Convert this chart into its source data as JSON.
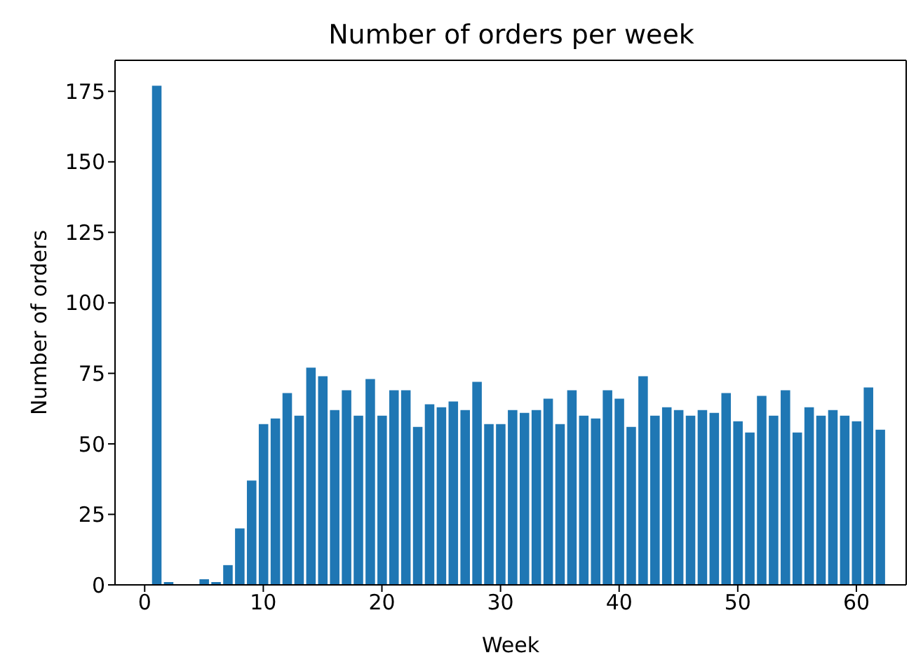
{
  "chart_data": {
    "type": "bar",
    "title": "Number of orders per week",
    "xlabel": "Week",
    "ylabel": "Number of orders",
    "x": [
      1,
      2,
      3,
      4,
      5,
      6,
      7,
      8,
      9,
      10,
      11,
      12,
      13,
      14,
      15,
      16,
      17,
      18,
      19,
      20,
      21,
      22,
      23,
      24,
      25,
      26,
      27,
      28,
      29,
      30,
      31,
      32,
      33,
      34,
      35,
      36,
      37,
      38,
      39,
      40,
      41,
      42,
      43,
      44,
      45,
      46,
      47,
      48,
      49,
      50,
      51,
      52,
      53,
      54,
      55,
      56,
      57,
      58,
      59,
      60,
      61,
      62
    ],
    "values": [
      177,
      1,
      0,
      0,
      2,
      1,
      7,
      20,
      37,
      57,
      59,
      68,
      60,
      77,
      74,
      62,
      69,
      60,
      73,
      60,
      69,
      69,
      56,
      64,
      63,
      65,
      62,
      72,
      57,
      57,
      62,
      61,
      62,
      66,
      57,
      69,
      60,
      59,
      69,
      66,
      56,
      74,
      60,
      63,
      62,
      60,
      62,
      61,
      68,
      58,
      54,
      67,
      60,
      69,
      54,
      63,
      60,
      62,
      60,
      58,
      70,
      55
    ],
    "color": "#1f77b4",
    "xlim": [
      -2.5,
      64.2
    ],
    "xticks": [
      0,
      10,
      20,
      30,
      40,
      50,
      60
    ],
    "ylim": [
      0,
      186
    ],
    "yticks": [
      0,
      25,
      50,
      75,
      100,
      125,
      150,
      175
    ]
  }
}
